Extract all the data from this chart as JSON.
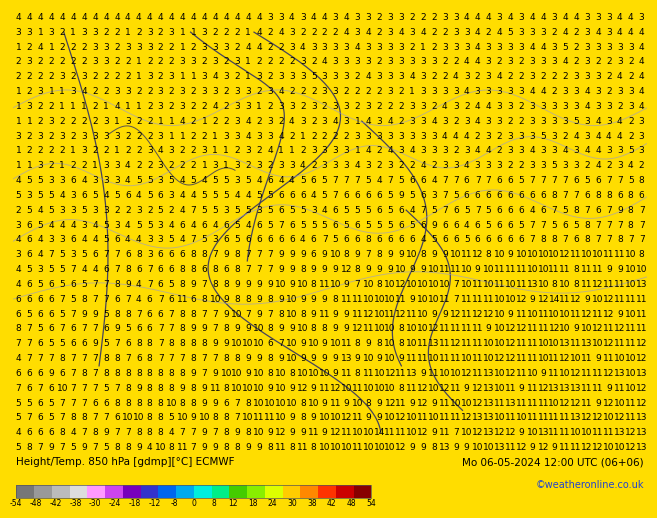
{
  "title_left": "Height/Temp. 850 hPa [gdmp][°C] ECMWF",
  "title_right": "Mo 06-05-2024 12:00 UTC (06+06)",
  "credit": "©weatheronline.co.uk",
  "main_bg": "#ffdd00",
  "bottom_bg": "#ffffff",
  "number_color": "#000000",
  "contour_color": "#9999cc",
  "border_color": "#333366",
  "colorbar_colors": [
    "#777777",
    "#999999",
    "#bbbbbb",
    "#dddddd",
    "#ffffff",
    "#ee88ff",
    "#aa00cc",
    "#4444ff",
    "#0077ff",
    "#00ccff",
    "#00ffcc",
    "#00dd44",
    "#44cc00",
    "#aadd00",
    "#ffff00",
    "#ffcc00",
    "#ff8800",
    "#ff3300",
    "#cc0000",
    "#880000"
  ],
  "colorbar_ticks": [
    -54,
    -48,
    -42,
    -38,
    -30,
    -24,
    -18,
    -12,
    -8,
    0,
    8,
    12,
    18,
    24,
    30,
    38,
    42,
    48,
    54
  ],
  "colorbar_colors_actual": [
    "#666666",
    "#888888",
    "#aaaaaa",
    "#cccccc",
    "#ff88ff",
    "#cc44ff",
    "#8800cc",
    "#4444dd",
    "#0066ff",
    "#00aaff",
    "#00ffff",
    "#00ff88",
    "#00cc44",
    "#88ff00",
    "#ccff00",
    "#ffcc00",
    "#ff8800",
    "#ff4400",
    "#cc0000",
    "#880000"
  ],
  "grid_rows": 30,
  "grid_cols": 58,
  "font_size_numbers": 6.5,
  "font_size_label": 7.5,
  "font_size_credit": 7.0
}
